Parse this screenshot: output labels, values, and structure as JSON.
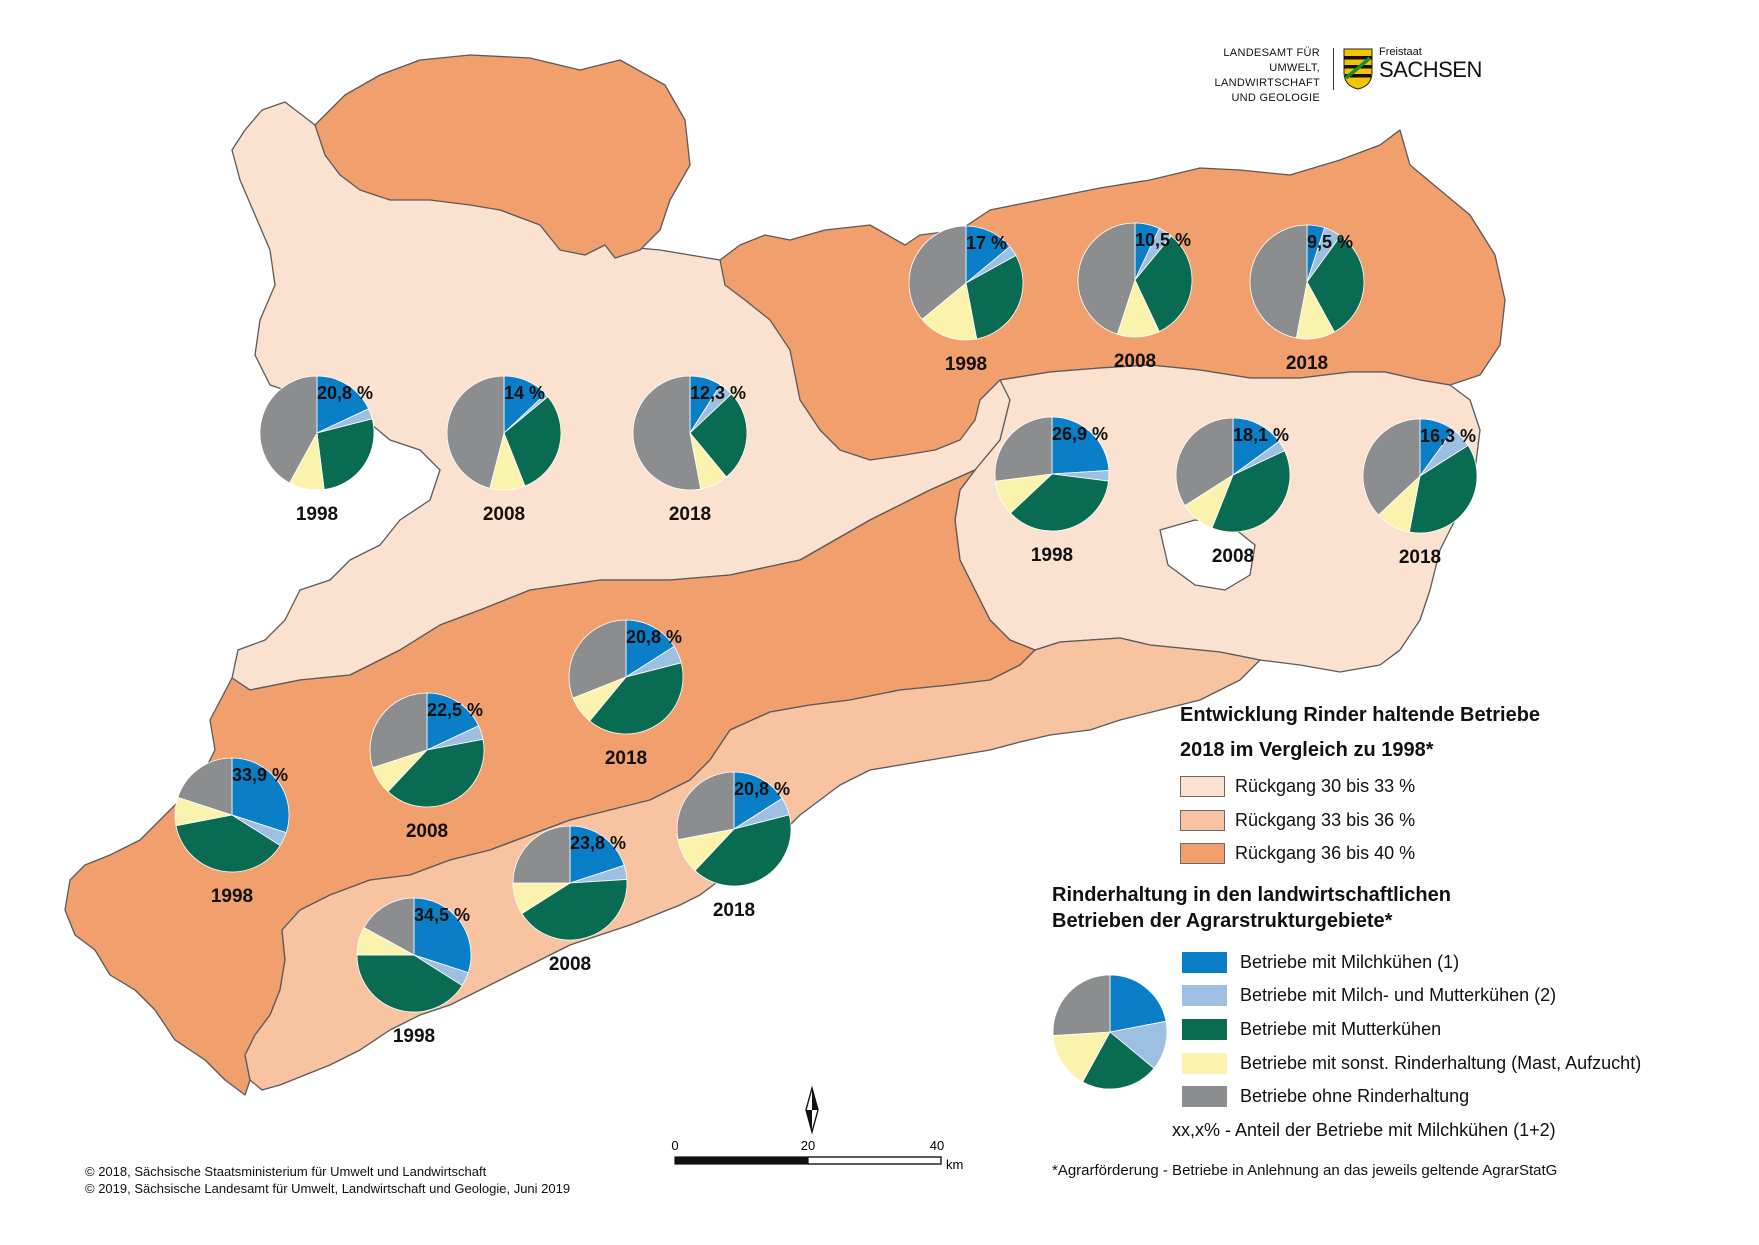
{
  "header": {
    "agency_lines": [
      "LANDESAMT FÜR UMWELT,",
      "LANDWIRTSCHAFT",
      "UND GEOLOGIE"
    ],
    "state_small": "Freistaat",
    "state_big": "SACHSEN"
  },
  "colors": {
    "rueckgang_30_33": "#fbe1cf",
    "rueckgang_33_36": "#f7c3a0",
    "rueckgang_36_40": "#f19f6c",
    "milch": "#0a7fc8",
    "milch_mutter": "#9dbfe2",
    "mutter": "#0a6b53",
    "sonst": "#fbf3ad",
    "ohne": "#8c8d8f"
  },
  "legend": {
    "title1": "Entwicklung Rinder haltende Betriebe",
    "title2": "2018 im Vergleich zu 1998*",
    "classes": [
      {
        "label": "Rückgang 30 bis 33 %",
        "color": "#fbe1cf"
      },
      {
        "label": "Rückgang 33 bis 36 %",
        "color": "#f7c3a0"
      },
      {
        "label": "Rückgang 36 bis 40 %",
        "color": "#f19f6c"
      }
    ],
    "pie_title1": "Rinderhaltung in den landwirtschaftlichen",
    "pie_title2": "Betrieben der Agrarstrukturgebiete*",
    "categories": [
      {
        "label": "Betriebe mit Milchkühen (1)",
        "color": "#0a7fc8"
      },
      {
        "label": "Betriebe mit Milch- und Mutterkühen (2)",
        "color": "#9dbfe2"
      },
      {
        "label": "Betriebe mit Mutterkühen",
        "color": "#0a6b53"
      },
      {
        "label": "Betriebe mit sonst. Rinderhaltung (Mast, Aufzucht)",
        "color": "#fbf3ad"
      },
      {
        "label": "Betriebe ohne Rinderhaltung",
        "color": "#8c8d8f"
      }
    ],
    "share_note": "xx,x% - Anteil der Betriebe mit Milchkühen (1+2)",
    "footnote": "*Agrarförderung - Betriebe in Anlehnung an das jeweils geltende AgrarStatG"
  },
  "scalebar": {
    "ticks": [
      "0",
      "20",
      "40"
    ],
    "unit": "km"
  },
  "credits": [
    "© 2018, Sächsische Staatsministerium für Umwelt und Landwirtschaft",
    "© 2019, Sächsische Landesamt für Umwelt, Landwirtschaft und Geologie, Juni 2019"
  ],
  "chart_data": {
    "type": "pie",
    "series_order": [
      "Betriebe mit Milchkühen (1)",
      "Betriebe mit Milch- und Mutterkühen (2)",
      "Betriebe mit Mutterkühen",
      "Betriebe mit sonst. Rinderhaltung (Mast, Aufzucht)",
      "Betriebe ohne Rinderhaltung"
    ],
    "legend_example_values": [
      22,
      14,
      22,
      16,
      26
    ],
    "regions": [
      {
        "class": "Rückgang 30 bis 33 %",
        "pies": [
          {
            "year": "1998",
            "label": "20,8 %",
            "values": [
              18,
              3,
              27,
              10,
              42
            ]
          },
          {
            "year": "2008",
            "label": "14 %",
            "values": [
              13,
              1,
              30,
              10,
              46
            ]
          },
          {
            "year": "2018",
            "label": "12,3 %",
            "values": [
              9,
              4,
              26,
              8,
              53
            ]
          }
        ]
      },
      {
        "class": "Rückgang 36 bis 40 %",
        "pies": [
          {
            "year": "1998",
            "label": "17 %",
            "values": [
              14,
              3,
              30,
              17,
              36
            ]
          },
          {
            "year": "2008",
            "label": "10,5 %",
            "values": [
              7,
              4,
              32,
              12,
              45
            ]
          },
          {
            "year": "2018",
            "label": "9,5 %",
            "values": [
              5,
              5,
              32,
              11,
              47
            ]
          }
        ]
      },
      {
        "class": "Rückgang 30 bis 33 %",
        "pies": [
          {
            "year": "1998",
            "label": "26,9 %",
            "values": [
              24,
              3,
              36,
              10,
              27
            ]
          },
          {
            "year": "2008",
            "label": "18,1 %",
            "values": [
              15,
              3,
              38,
              10,
              34
            ]
          },
          {
            "year": "2018",
            "label": "16,3 %",
            "values": [
              10,
              6,
              37,
              10,
              37
            ]
          }
        ]
      },
      {
        "class": "Rückgang 36 bis 40 %",
        "pies": [
          {
            "year": "1998",
            "label": "33,9 %",
            "values": [
              30,
              4,
              38,
              8,
              20
            ]
          },
          {
            "year": "2008",
            "label": "22,5 %",
            "values": [
              18,
              4,
              40,
              8,
              30
            ]
          },
          {
            "year": "2018",
            "label": "20,8 %",
            "values": [
              16,
              5,
              40,
              8,
              31
            ]
          }
        ]
      },
      {
        "class": "Rückgang 33 bis 36 %",
        "pies": [
          {
            "year": "1998",
            "label": "34,5 %",
            "values": [
              30,
              4,
              41,
              8,
              17
            ]
          },
          {
            "year": "2008",
            "label": "23,8 %",
            "values": [
              20,
              4,
              42,
              9,
              25
            ]
          },
          {
            "year": "2018",
            "label": "20,8 %",
            "values": [
              16,
              5,
              41,
              10,
              28
            ]
          }
        ]
      }
    ]
  }
}
